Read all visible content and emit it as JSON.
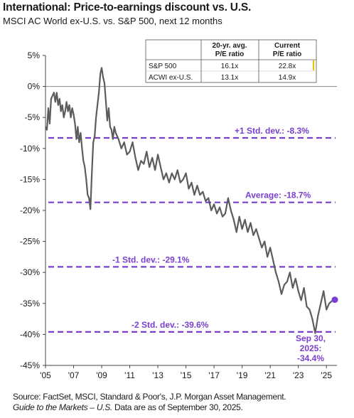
{
  "header": {
    "title": "International: Price-to-earnings discount vs. U.S.",
    "subtitle": "MSCI AC World ex-U.S. vs. S&P 500, next 12 months"
  },
  "table": {
    "headers": [
      "20-yr. avg.\nP/E ratio",
      "Current\nP/E ratio"
    ],
    "rows": [
      {
        "label": "S&P 500",
        "avg": "16.1x",
        "current": "22.8x"
      },
      {
        "label": "ACWI ex-U.S.",
        "avg": "13.1x",
        "current": "14.9x"
      }
    ]
  },
  "footer": {
    "source_prefix": "Source: FactSet, MSCI, Standard & Poor's, J.P. Morgan Asset Management.",
    "source_italic": "Guide to the Markets – U.S.",
    "source_suffix": " Data are as of September 30, 2025."
  },
  "chart_data": {
    "type": "line",
    "title": "International: Price-to-earnings discount vs. U.S.",
    "subtitle": "MSCI AC World ex-U.S. vs. S&P 500, next 12 months",
    "xlim": [
      2005,
      2025.75
    ],
    "ylim": [
      -45,
      5
    ],
    "y_ticks": [
      5,
      0,
      -5,
      -10,
      -15,
      -20,
      -25,
      -30,
      -35,
      -40,
      -45
    ],
    "y_tick_labels": [
      "5%",
      "0%",
      "-5%",
      "-10%",
      "-15%",
      "-20%",
      "-25%",
      "-30%",
      "-35%",
      "-40%",
      "-45%"
    ],
    "x_ticks": [
      2005,
      2007,
      2009,
      2011,
      2013,
      2015,
      2017,
      2019,
      2021,
      2023,
      2025
    ],
    "x_tick_labels": [
      "'05",
      "'07",
      "'09",
      "'11",
      "'13",
      "'15",
      "'17",
      "'19",
      "'21",
      "'23",
      "'25"
    ],
    "reference_lines": [
      {
        "label": "+1 Std. dev.: -8.3%",
        "value": -8.3
      },
      {
        "label": "Average: -18.7%",
        "value": -18.7
      },
      {
        "label": "-1 Std. dev.: -29.1%",
        "value": -29.1
      },
      {
        "label": "-2 Std. dev.: -39.6%",
        "value": -39.6
      }
    ],
    "series": [
      {
        "values": [
          [
            2005.0,
            -6.5
          ],
          [
            2005.1,
            -7.0
          ],
          [
            2005.2,
            -3.5
          ],
          [
            2005.3,
            -6.0
          ],
          [
            2005.4,
            -2.0
          ],
          [
            2005.5,
            -1.5
          ],
          [
            2005.6,
            -1.0
          ],
          [
            2005.7,
            -2.5
          ],
          [
            2005.8,
            -1.0
          ],
          [
            2005.9,
            -3.0
          ],
          [
            2006.0,
            -2.0
          ],
          [
            2006.1,
            -4.0
          ],
          [
            2006.2,
            -3.0
          ],
          [
            2006.3,
            -5.0
          ],
          [
            2006.4,
            -4.0
          ],
          [
            2006.5,
            -2.5
          ],
          [
            2006.6,
            -4.0
          ],
          [
            2006.7,
            -3.0
          ],
          [
            2006.8,
            -5.0
          ],
          [
            2006.9,
            -3.5
          ],
          [
            2007.0,
            -4.5
          ],
          [
            2007.1,
            -6.0
          ],
          [
            2007.2,
            -8.5
          ],
          [
            2007.3,
            -6.5
          ],
          [
            2007.4,
            -9.0
          ],
          [
            2007.5,
            -7.5
          ],
          [
            2007.6,
            -10.0
          ],
          [
            2007.7,
            -12.0
          ],
          [
            2007.8,
            -13.0
          ],
          [
            2007.9,
            -15.0
          ],
          [
            2008.0,
            -17.5
          ],
          [
            2008.1,
            -18.0
          ],
          [
            2008.2,
            -19.8
          ],
          [
            2008.3,
            -14.0
          ],
          [
            2008.4,
            -9.0
          ],
          [
            2008.5,
            -8.0
          ],
          [
            2008.6,
            -5.0
          ],
          [
            2008.7,
            -3.0
          ],
          [
            2008.8,
            -1.0
          ],
          [
            2008.9,
            2.0
          ],
          [
            2009.0,
            3.0
          ],
          [
            2009.1,
            1.5
          ],
          [
            2009.2,
            0.5
          ],
          [
            2009.3,
            -2.5
          ],
          [
            2009.4,
            -5.5
          ],
          [
            2009.5,
            -3.5
          ],
          [
            2009.6,
            -6.5
          ],
          [
            2009.7,
            -7.0
          ],
          [
            2009.8,
            -8.5
          ],
          [
            2009.9,
            -6.5
          ],
          [
            2010.0,
            -7.5
          ],
          [
            2010.2,
            -8.5
          ],
          [
            2010.4,
            -10.0
          ],
          [
            2010.6,
            -9.0
          ],
          [
            2010.8,
            -11.0
          ],
          [
            2011.0,
            -10.5
          ],
          [
            2011.2,
            -9.0
          ],
          [
            2011.4,
            -11.5
          ],
          [
            2011.6,
            -13.5
          ],
          [
            2011.8,
            -12.0
          ],
          [
            2012.0,
            -12.5
          ],
          [
            2012.2,
            -10.5
          ],
          [
            2012.4,
            -13.0
          ],
          [
            2012.6,
            -11.5
          ],
          [
            2012.8,
            -13.5
          ],
          [
            2013.0,
            -11.0
          ],
          [
            2013.2,
            -13.0
          ],
          [
            2013.4,
            -15.0
          ],
          [
            2013.6,
            -14.0
          ],
          [
            2013.8,
            -15.5
          ],
          [
            2014.0,
            -14.0
          ],
          [
            2014.2,
            -15.0
          ],
          [
            2014.4,
            -13.5
          ],
          [
            2014.6,
            -15.5
          ],
          [
            2014.8,
            -15.0
          ],
          [
            2015.0,
            -14.0
          ],
          [
            2015.2,
            -16.5
          ],
          [
            2015.4,
            -15.5
          ],
          [
            2015.6,
            -17.5
          ],
          [
            2015.8,
            -16.0
          ],
          [
            2016.0,
            -17.5
          ],
          [
            2016.2,
            -17.0
          ],
          [
            2016.4,
            -18.5
          ],
          [
            2016.6,
            -18.0
          ],
          [
            2016.8,
            -20.0
          ],
          [
            2017.0,
            -19.0
          ],
          [
            2017.2,
            -20.5
          ],
          [
            2017.4,
            -19.5
          ],
          [
            2017.6,
            -21.0
          ],
          [
            2017.8,
            -20.5
          ],
          [
            2018.0,
            -18.0
          ],
          [
            2018.2,
            -20.0
          ],
          [
            2018.4,
            -21.5
          ],
          [
            2018.6,
            -23.5
          ],
          [
            2018.8,
            -21.0
          ],
          [
            2019.0,
            -23.0
          ],
          [
            2019.2,
            -21.5
          ],
          [
            2019.4,
            -23.5
          ],
          [
            2019.6,
            -22.0
          ],
          [
            2019.8,
            -24.0
          ],
          [
            2020.0,
            -23.0
          ],
          [
            2020.2,
            -24.5
          ],
          [
            2020.4,
            -26.0
          ],
          [
            2020.6,
            -25.0
          ],
          [
            2020.8,
            -27.5
          ],
          [
            2021.0,
            -26.0
          ],
          [
            2021.2,
            -28.0
          ],
          [
            2021.4,
            -30.0
          ],
          [
            2021.6,
            -31.5
          ],
          [
            2021.8,
            -33.5
          ],
          [
            2022.0,
            -32.0
          ],
          [
            2022.2,
            -31.5
          ],
          [
            2022.4,
            -30.0
          ],
          [
            2022.6,
            -32.5
          ],
          [
            2022.8,
            -31.0
          ],
          [
            2023.0,
            -33.0
          ],
          [
            2023.2,
            -34.5
          ],
          [
            2023.4,
            -32.5
          ],
          [
            2023.6,
            -35.5
          ],
          [
            2023.8,
            -36.0
          ],
          [
            2024.0,
            -37.5
          ],
          [
            2024.2,
            -39.8
          ],
          [
            2024.4,
            -37.0
          ],
          [
            2024.6,
            -35.0
          ],
          [
            2024.8,
            -33.0
          ],
          [
            2025.0,
            -36.0
          ],
          [
            2025.2,
            -35.0
          ],
          [
            2025.4,
            -34.6
          ],
          [
            2025.6,
            -34.4
          ]
        ]
      }
    ],
    "annotation": {
      "text": "Sep 30,\n2025:\n-34.4%",
      "x": 2025.6,
      "y": -34.4
    },
    "grid": false,
    "colors": {
      "line": "#5c5c5c",
      "reference": "#7a3fd0",
      "marker": "#7a3fd0"
    }
  }
}
